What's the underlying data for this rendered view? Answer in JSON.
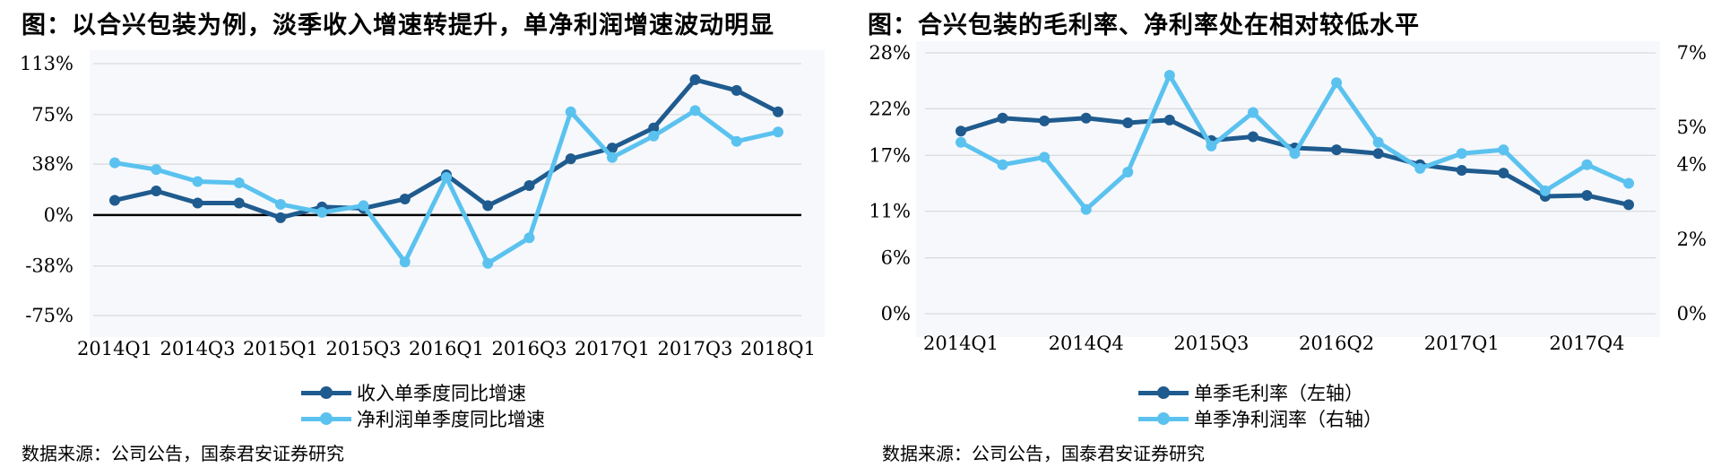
{
  "colors": {
    "dark": "#1f5b8e",
    "light": "#5bc2ef",
    "zero_line": "#000000",
    "grid": "#d9d9d9"
  },
  "source_left": "数据来源：公司公告，国泰君安证券研究",
  "source_right": "数据来源：公司公告，国泰君安证券研究",
  "chart_data": [
    {
      "type": "line",
      "title": "图：以合兴包装为例，淡季收入增速转提升，单净利润增速波动明显",
      "xlabel": "",
      "ylabel": "",
      "ylim": [
        -75,
        113
      ],
      "y_tick_values": [
        -75,
        -38,
        0,
        38,
        75,
        113
      ],
      "y_tick_labels": [
        "-75%",
        "-38%",
        "0%",
        "38%",
        "75%",
        "113%"
      ],
      "categories": [
        "2014Q1",
        "2014Q2",
        "2014Q3",
        "2014Q4",
        "2015Q1",
        "2015Q2",
        "2015Q3",
        "2015Q4",
        "2016Q1",
        "2016Q2",
        "2016Q3",
        "2016Q4",
        "2017Q1",
        "2017Q2",
        "2017Q3",
        "2017Q4",
        "2018Q1"
      ],
      "x_tick_labels": [
        "2014Q1",
        "2014Q3",
        "2015Q1",
        "2015Q3",
        "2016Q1",
        "2016Q3",
        "2017Q1",
        "2017Q3",
        "2018Q1"
      ],
      "grid": true,
      "legend_position": "bottom",
      "series": [
        {
          "name": "收入单季度同比增速",
          "axis": "left",
          "color": "#1f5b8e",
          "values": [
            11,
            18,
            9,
            9,
            -2,
            6,
            5,
            12,
            30,
            7,
            22,
            42,
            50,
            65,
            101,
            93,
            77
          ]
        },
        {
          "name": "净利润单季度同比增速",
          "axis": "left",
          "color": "#5bc2ef",
          "values": [
            39,
            34,
            25,
            24,
            8,
            2,
            7,
            -35,
            28,
            -36,
            -17,
            77,
            43,
            59,
            78,
            55,
            62
          ]
        }
      ]
    },
    {
      "type": "line",
      "title": "图：合兴包装的毛利率、净利率处在相对较低水平",
      "xlabel": "",
      "ylabel": "",
      "ylim": [
        0,
        28
      ],
      "ylim_right": [
        0,
        7
      ],
      "y_tick_values": [
        0,
        6,
        11,
        17,
        22,
        28
      ],
      "y_tick_labels": [
        "0%",
        "6%",
        "11%",
        "17%",
        "22%",
        "28%"
      ],
      "y2_tick_values": [
        0,
        2,
        4,
        5,
        7
      ],
      "y2_tick_labels": [
        "0%",
        "2%",
        "4%",
        "5%",
        "7%"
      ],
      "categories": [
        "2014Q1",
        "2014Q2",
        "2014Q3",
        "2014Q4",
        "2015Q1",
        "2015Q2",
        "2015Q3",
        "2015Q4",
        "2016Q1",
        "2016Q2",
        "2016Q3",
        "2016Q4",
        "2017Q1",
        "2017Q2",
        "2017Q3",
        "2017Q4",
        "2018Q1"
      ],
      "x_tick_labels": [
        "2014Q1",
        "2014Q4",
        "2015Q3",
        "2016Q2",
        "2017Q1",
        "2017Q4"
      ],
      "grid": true,
      "legend_position": "bottom",
      "series": [
        {
          "name": "单季毛利率（左轴）",
          "axis": "left",
          "color": "#1f5b8e",
          "values": [
            19.6,
            21.0,
            20.7,
            21.0,
            20.5,
            20.8,
            18.6,
            19.0,
            17.8,
            17.6,
            17.2,
            16.0,
            15.4,
            15.1,
            12.6,
            12.7,
            11.7
          ]
        },
        {
          "name": "单季净利润率（右轴）",
          "axis": "right",
          "color": "#5bc2ef",
          "values": [
            4.6,
            4.0,
            4.2,
            2.8,
            3.8,
            6.4,
            4.5,
            5.4,
            4.3,
            6.2,
            4.6,
            3.9,
            4.3,
            4.4,
            3.3,
            4.0,
            3.5
          ]
        }
      ]
    }
  ]
}
